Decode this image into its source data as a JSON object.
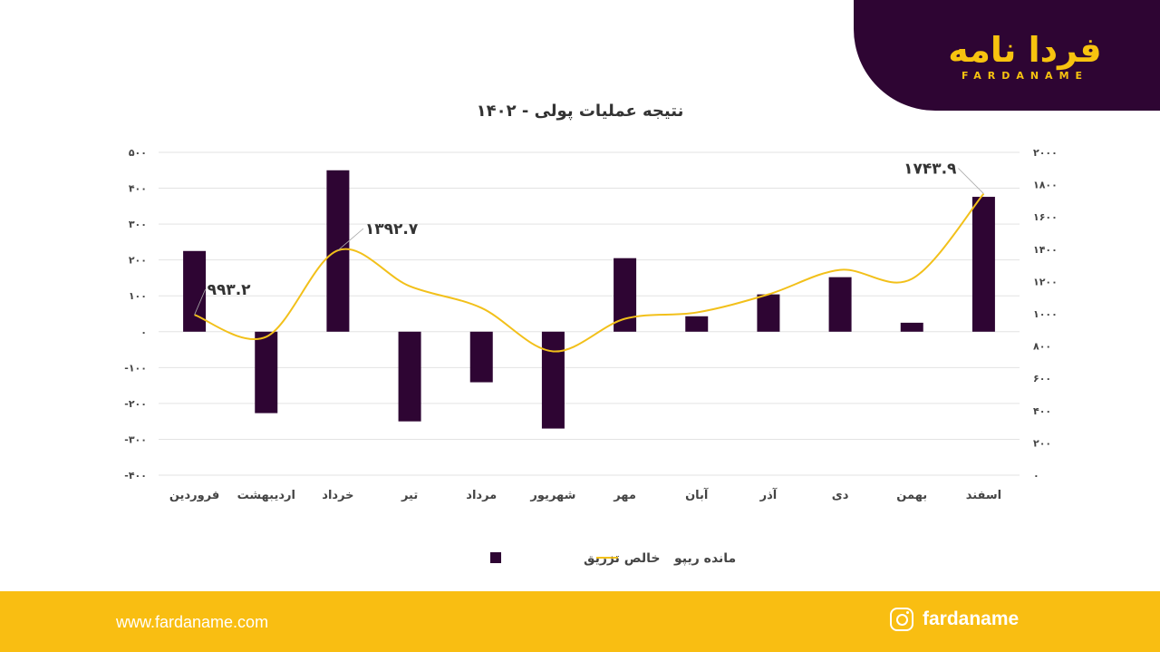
{
  "logo": {
    "text_fa": "فردا نامه",
    "text_en": "FARDANAME"
  },
  "chart_data": {
    "type": "bar+line",
    "title": "نتیجه عملیات پولی - ۱۴۰۲",
    "categories": [
      "فروردین",
      "اردیبهشت",
      "خرداد",
      "تیر",
      "مرداد",
      "شهریور",
      "مهر",
      "آبان",
      "آذر",
      "دی",
      "بهمن",
      "اسفند"
    ],
    "series": [
      {
        "name": "خالص تزریق",
        "type": "bar",
        "axis": "left",
        "color": "#2e0533",
        "values": [
          225,
          -227,
          450,
          -250,
          -141,
          -270,
          205,
          43,
          104,
          152,
          25,
          376
        ]
      },
      {
        "name": "مانده ریپو",
        "type": "line",
        "axis": "right",
        "color": "#f2c01a",
        "values": [
          993.2,
          857,
          1392.7,
          1171,
          1036,
          767,
          969,
          1008,
          1120,
          1272,
          1216,
          1743.9
        ]
      }
    ],
    "data_labels": [
      {
        "index": 0,
        "text": "۹۹۳.۲"
      },
      {
        "index": 2,
        "text": "۱۳۹۲.۷"
      },
      {
        "index": 11,
        "text": "۱۷۴۳.۹"
      }
    ],
    "left_axis": {
      "ylim": [
        -400,
        500
      ],
      "ticks": [
        {
          "v": 500,
          "t": "۵۰۰"
        },
        {
          "v": 400,
          "t": "۴۰۰"
        },
        {
          "v": 300,
          "t": "۳۰۰"
        },
        {
          "v": 200,
          "t": "۲۰۰"
        },
        {
          "v": 100,
          "t": "۱۰۰"
        },
        {
          "v": 0,
          "t": "۰"
        },
        {
          "v": -100,
          "t": "-۱۰۰"
        },
        {
          "v": -200,
          "t": "-۲۰۰"
        },
        {
          "v": -300,
          "t": "-۳۰۰"
        },
        {
          "v": -400,
          "t": "-۴۰۰"
        }
      ]
    },
    "right_axis": {
      "ylim": [
        0,
        2000
      ],
      "ticks": [
        {
          "v": 2000,
          "t": "۲۰۰۰"
        },
        {
          "v": 1800,
          "t": "۱۸۰۰"
        },
        {
          "v": 1600,
          "t": "۱۶۰۰"
        },
        {
          "v": 1400,
          "t": "۱۴۰۰"
        },
        {
          "v": 1200,
          "t": "۱۲۰۰"
        },
        {
          "v": 1000,
          "t": "۱۰۰۰"
        },
        {
          "v": 800,
          "t": "۸۰۰"
        },
        {
          "v": 600,
          "t": "۶۰۰"
        },
        {
          "v": 400,
          "t": "۴۰۰"
        },
        {
          "v": 200,
          "t": "۲۰۰"
        },
        {
          "v": 0,
          "t": "۰"
        }
      ]
    },
    "grid": true,
    "legend": "bottom"
  },
  "footer": {
    "website": "www.fardaname.com",
    "instagram": "fardaname"
  }
}
